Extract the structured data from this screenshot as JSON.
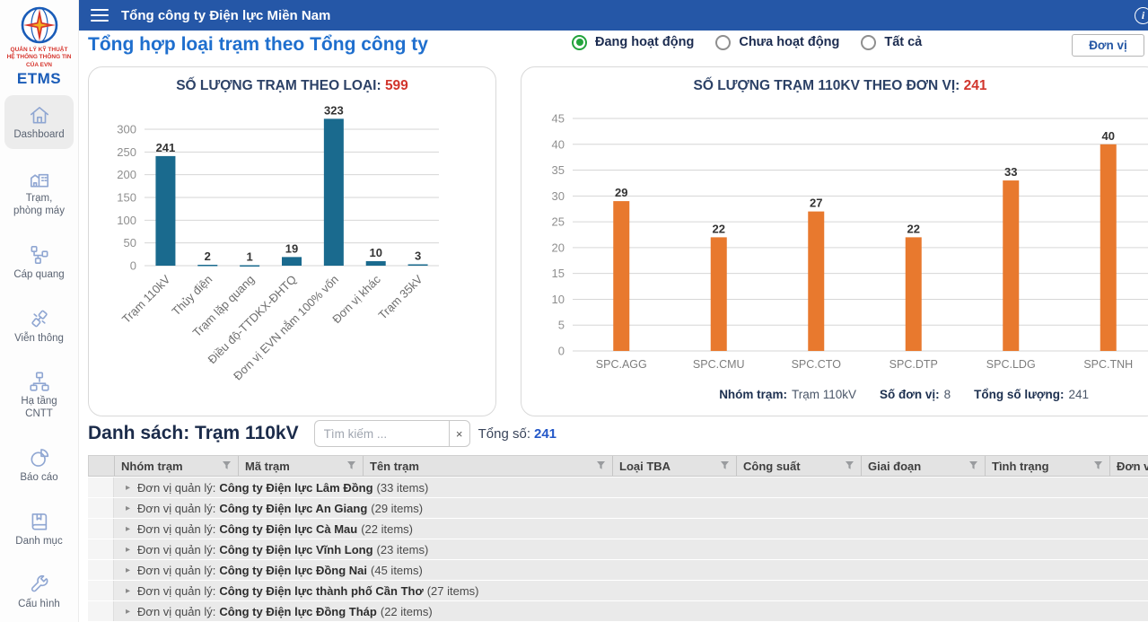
{
  "app": {
    "window_title": "Tổng công ty Điện lực Miền Nam",
    "info_glyph": "i"
  },
  "logo": {
    "caption_lines": [
      "QUẢN LÝ KỸ THUẬT",
      "HỆ THỐNG THÔNG TIN",
      "CỦA EVN"
    ],
    "brand": "ETMS"
  },
  "sidebar": {
    "items": [
      {
        "label": "Dashboard",
        "icon": "home-icon",
        "active": true
      },
      {
        "label": "Trạm,\nphòng máy",
        "icon": "station-icon",
        "active": false
      },
      {
        "label": "Cáp quang",
        "icon": "network-icon",
        "active": false
      },
      {
        "label": "Viễn thông",
        "icon": "telecom-icon",
        "active": false
      },
      {
        "label": "Hạ tầng\nCNTT",
        "icon": "infra-icon",
        "active": false
      },
      {
        "label": "Báo cáo",
        "icon": "report-icon",
        "active": false
      },
      {
        "label": "Danh mục",
        "icon": "catalog-icon",
        "active": false
      },
      {
        "label": "Cấu hình",
        "icon": "config-icon",
        "active": false
      }
    ]
  },
  "toolbar": {
    "page_title": "Tổng hợp loại trạm theo Tổng công ty",
    "radios": [
      {
        "label": "Đang hoạt động",
        "selected": true
      },
      {
        "label": "Chưa hoạt động",
        "selected": false
      },
      {
        "label": "Tất cả",
        "selected": false
      }
    ],
    "unit_button": "Đơn vị"
  },
  "chart_data": [
    {
      "type": "bar",
      "title": "SỐ LƯỢNG TRẠM THEO LOẠI:",
      "total": "599",
      "categories": [
        "Trạm 110kV",
        "Thủy điện",
        "Trạm lặp quang",
        "Điều độ-TTDKX-ĐHTQ",
        "Đơn vị EVN nắm 100% vốn",
        "Đơn vị khác",
        "Trạm 35kV"
      ],
      "values": [
        241,
        2,
        1,
        19,
        323,
        10,
        3
      ],
      "ylim": [
        0,
        300
      ],
      "ytick_step": 50,
      "bar_color": "#1A6A8E",
      "grid": true,
      "legend": false
    },
    {
      "type": "bar",
      "title": "SỐ LƯỢNG TRẠM 110KV THEO ĐƠN VỊ:",
      "total": "241",
      "categories": [
        "SPC.AGG",
        "SPC.CMU",
        "SPC.CTO",
        "SPC.DTP",
        "SPC.LDG",
        "SPC.TNH"
      ],
      "values": [
        29,
        22,
        27,
        22,
        33,
        40
      ],
      "ylim": [
        0,
        45
      ],
      "ytick_step": 5,
      "bar_color": "#E8792E",
      "grid": true,
      "legend": false,
      "footer": [
        {
          "label": "Nhóm trạm:",
          "value": "Trạm 110kV"
        },
        {
          "label": "Số đơn vị:",
          "value": "8"
        },
        {
          "label": "Tổng số lượng:",
          "value": "241"
        }
      ]
    }
  ],
  "list": {
    "heading": "Danh sách: Trạm 110kV",
    "search_placeholder": "Tìm kiếm ...",
    "clear_label": "×",
    "total_label": "Tổng số:",
    "total_value": "241"
  },
  "table": {
    "columns": [
      "Nhóm trạm",
      "Mã trạm",
      "Tên trạm",
      "Loại TBA",
      "Công suất",
      "Giai đoạn",
      "Tình trạng",
      "Đơn vị quản lý"
    ],
    "group_prefix": "Đơn vị quản lý:",
    "groups": [
      {
        "name": "Công ty Điện lực Lâm Đồng",
        "count": "(33 items)"
      },
      {
        "name": "Công ty Điện lực An Giang",
        "count": "(29 items)"
      },
      {
        "name": "Công ty Điện lực Cà Mau",
        "count": "(22 items)"
      },
      {
        "name": "Công ty Điện lực Vĩnh Long",
        "count": "(23 items)"
      },
      {
        "name": "Công ty Điện lực Đồng Nai",
        "count": "(45 items)"
      },
      {
        "name": "Công ty Điện lực thành phố Cần Thơ",
        "count": "(27 items)"
      },
      {
        "name": "Công ty Điện lực Đồng Tháp",
        "count": "(22 items)"
      }
    ]
  },
  "colors": {
    "header_bar": "#2557A7",
    "accent_blue": "#1F6FCE",
    "title_red": "#D1352C",
    "bar_teal": "#1A6A8E",
    "bar_orange": "#E8792E",
    "radio_green": "#23A33C"
  }
}
